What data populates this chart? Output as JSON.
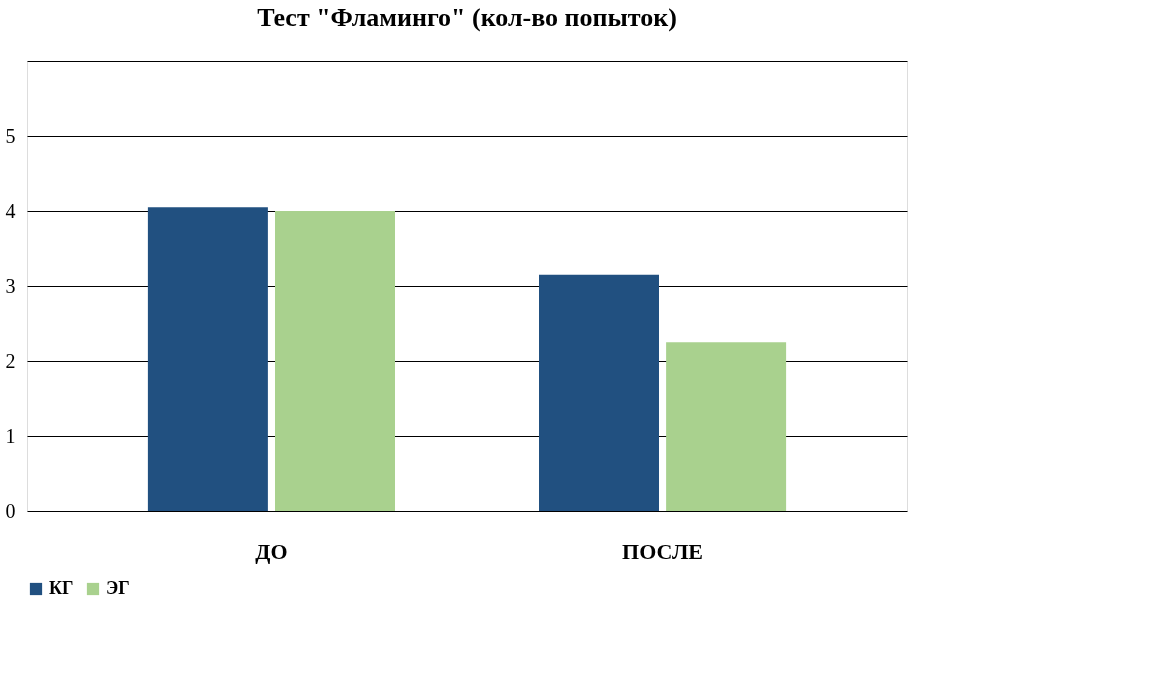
{
  "chart_data": {
    "type": "bar",
    "title": "Тест \"Фламинго\" (кол-во попыток)",
    "categories": [
      "ДО",
      "ПОСЛЕ"
    ],
    "series": [
      {
        "name": "КГ",
        "color": "#215080",
        "values": [
          4.05,
          3.15
        ]
      },
      {
        "name": "ЭГ",
        "color": "#a9d18e",
        "values": [
          4.0,
          2.25
        ]
      }
    ],
    "ylim": [
      0,
      6
    ],
    "yticks": [
      0,
      1,
      2,
      3,
      4,
      5,
      {
        "value": 6,
        "label": null
      }
    ],
    "grid": "y",
    "legend": "bottom"
  }
}
